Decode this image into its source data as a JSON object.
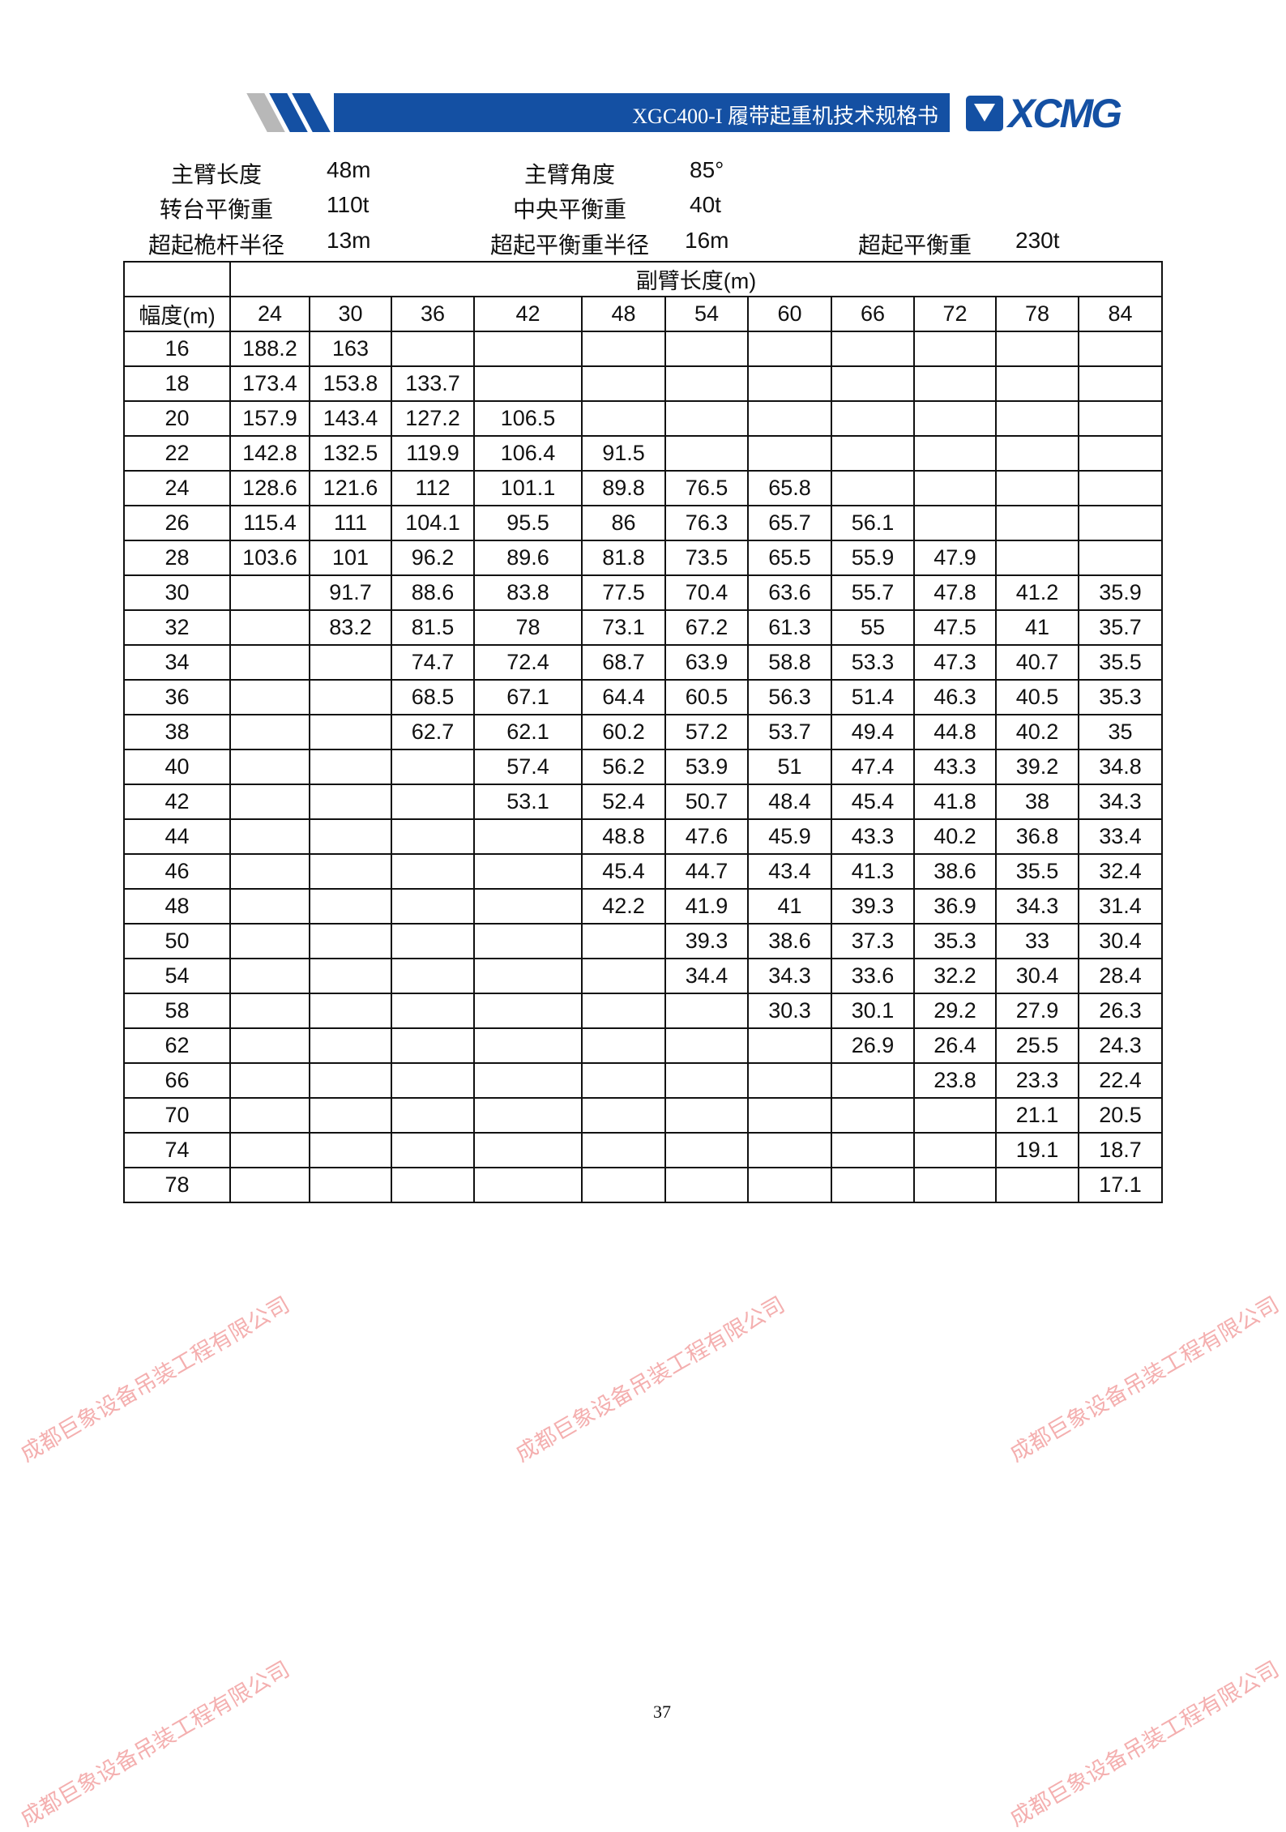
{
  "header": {
    "title": "XGC400-I 履带起重机技术规格书",
    "logo_text": "XCMG",
    "brand_color": "#1450a3"
  },
  "specs": [
    {
      "label": "主臂长度",
      "value": "48m"
    },
    {
      "label": "主臂角度",
      "value": "85°"
    },
    {
      "label": "转台平衡重",
      "value": "110t"
    },
    {
      "label": "中央平衡重",
      "value": "40t"
    },
    {
      "label": "超起桅杆半径",
      "value": "13m"
    },
    {
      "label": "超起平衡重半径",
      "value": "16m"
    },
    {
      "label": "超起平衡重",
      "value": "230t"
    }
  ],
  "table": {
    "group_header": "副臂长度(m)",
    "radius_header": "幅度(m)",
    "columns": [
      "24",
      "30",
      "36",
      "42",
      "48",
      "54",
      "60",
      "66",
      "72",
      "78",
      "84"
    ],
    "rows": [
      {
        "r": "16",
        "v": [
          "188.2",
          "163",
          "",
          "",
          "",
          "",
          "",
          "",
          "",
          "",
          ""
        ]
      },
      {
        "r": "18",
        "v": [
          "173.4",
          "153.8",
          "133.7",
          "",
          "",
          "",
          "",
          "",
          "",
          "",
          ""
        ]
      },
      {
        "r": "20",
        "v": [
          "157.9",
          "143.4",
          "127.2",
          "106.5",
          "",
          "",
          "",
          "",
          "",
          "",
          ""
        ]
      },
      {
        "r": "22",
        "v": [
          "142.8",
          "132.5",
          "119.9",
          "106.4",
          "91.5",
          "",
          "",
          "",
          "",
          "",
          ""
        ]
      },
      {
        "r": "24",
        "v": [
          "128.6",
          "121.6",
          "112",
          "101.1",
          "89.8",
          "76.5",
          "65.8",
          "",
          "",
          "",
          ""
        ]
      },
      {
        "r": "26",
        "v": [
          "115.4",
          "111",
          "104.1",
          "95.5",
          "86",
          "76.3",
          "65.7",
          "56.1",
          "",
          "",
          ""
        ]
      },
      {
        "r": "28",
        "v": [
          "103.6",
          "101",
          "96.2",
          "89.6",
          "81.8",
          "73.5",
          "65.5",
          "55.9",
          "47.9",
          "",
          ""
        ]
      },
      {
        "r": "30",
        "v": [
          "",
          "91.7",
          "88.6",
          "83.8",
          "77.5",
          "70.4",
          "63.6",
          "55.7",
          "47.8",
          "41.2",
          "35.9"
        ]
      },
      {
        "r": "32",
        "v": [
          "",
          "83.2",
          "81.5",
          "78",
          "73.1",
          "67.2",
          "61.3",
          "55",
          "47.5",
          "41",
          "35.7"
        ]
      },
      {
        "r": "34",
        "v": [
          "",
          "",
          "74.7",
          "72.4",
          "68.7",
          "63.9",
          "58.8",
          "53.3",
          "47.3",
          "40.7",
          "35.5"
        ]
      },
      {
        "r": "36",
        "v": [
          "",
          "",
          "68.5",
          "67.1",
          "64.4",
          "60.5",
          "56.3",
          "51.4",
          "46.3",
          "40.5",
          "35.3"
        ]
      },
      {
        "r": "38",
        "v": [
          "",
          "",
          "62.7",
          "62.1",
          "60.2",
          "57.2",
          "53.7",
          "49.4",
          "44.8",
          "40.2",
          "35"
        ]
      },
      {
        "r": "40",
        "v": [
          "",
          "",
          "",
          "57.4",
          "56.2",
          "53.9",
          "51",
          "47.4",
          "43.3",
          "39.2",
          "34.8"
        ]
      },
      {
        "r": "42",
        "v": [
          "",
          "",
          "",
          "53.1",
          "52.4",
          "50.7",
          "48.4",
          "45.4",
          "41.8",
          "38",
          "34.3"
        ]
      },
      {
        "r": "44",
        "v": [
          "",
          "",
          "",
          "",
          "48.8",
          "47.6",
          "45.9",
          "43.3",
          "40.2",
          "36.8",
          "33.4"
        ]
      },
      {
        "r": "46",
        "v": [
          "",
          "",
          "",
          "",
          "45.4",
          "44.7",
          "43.4",
          "41.3",
          "38.6",
          "35.5",
          "32.4"
        ]
      },
      {
        "r": "48",
        "v": [
          "",
          "",
          "",
          "",
          "42.2",
          "41.9",
          "41",
          "39.3",
          "36.9",
          "34.3",
          "31.4"
        ]
      },
      {
        "r": "50",
        "v": [
          "",
          "",
          "",
          "",
          "",
          "39.3",
          "38.6",
          "37.3",
          "35.3",
          "33",
          "30.4"
        ]
      },
      {
        "r": "54",
        "v": [
          "",
          "",
          "",
          "",
          "",
          "34.4",
          "34.3",
          "33.6",
          "32.2",
          "30.4",
          "28.4"
        ]
      },
      {
        "r": "58",
        "v": [
          "",
          "",
          "",
          "",
          "",
          "",
          "30.3",
          "30.1",
          "29.2",
          "27.9",
          "26.3"
        ]
      },
      {
        "r": "62",
        "v": [
          "",
          "",
          "",
          "",
          "",
          "",
          "",
          "26.9",
          "26.4",
          "25.5",
          "24.3"
        ]
      },
      {
        "r": "66",
        "v": [
          "",
          "",
          "",
          "",
          "",
          "",
          "",
          "",
          "23.8",
          "23.3",
          "22.4"
        ]
      },
      {
        "r": "70",
        "v": [
          "",
          "",
          "",
          "",
          "",
          "",
          "",
          "",
          "",
          "21.1",
          "20.5"
        ]
      },
      {
        "r": "74",
        "v": [
          "",
          "",
          "",
          "",
          "",
          "",
          "",
          "",
          "",
          "19.1",
          "18.7"
        ]
      },
      {
        "r": "78",
        "v": [
          "",
          "",
          "",
          "",
          "",
          "",
          "",
          "",
          "",
          "",
          "17.1"
        ]
      }
    ]
  },
  "page_number": "37",
  "watermark": {
    "text": "成都巨象设备吊装工程有限公司",
    "color": "#eb6e6e"
  }
}
